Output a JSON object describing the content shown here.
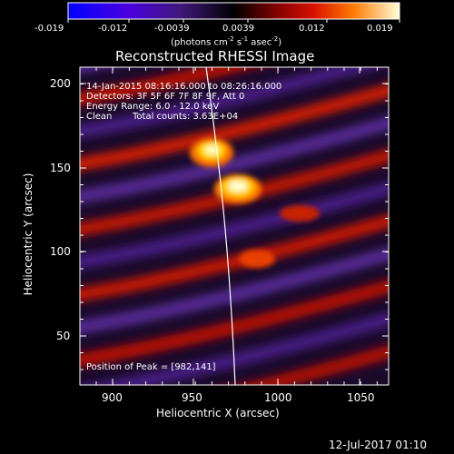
{
  "colorbar": {
    "ticks": [
      "-0.019",
      "-0.012",
      "-0.0039",
      "0.0039",
      "0.012",
      "0.019"
    ],
    "unit_label": "(photons cm",
    "unit_sup1": "-2",
    "unit_mid1": " s",
    "unit_sup2": "-1",
    "unit_mid2": " asec",
    "unit_sup3": "-2",
    "unit_end": ")"
  },
  "title": "Reconstructed RHESSI Image",
  "info": {
    "time_range": "14-Jan-2015 08:16:16.000 to 08:26:16.000",
    "detectors": "Detectors: 3F 5F 6F 7F 8F 9F, Att 0",
    "energy": "Energy Range: 6.0 - 12.0 keV",
    "algorithm": "Clean",
    "counts": "Total counts: 3.63E+04",
    "peak": "Position of Peak = [982,141]"
  },
  "axes": {
    "xlabel": "Heliocentric X (arcsec)",
    "ylabel": "Heliocentric Y (arcsec)",
    "xticks": [
      "900",
      "950",
      "1000",
      "1050"
    ],
    "yticks": [
      "50",
      "100",
      "150",
      "200"
    ]
  },
  "footer_date": "12-Jul-2017 01:10",
  "colors": {
    "background": "#000000",
    "text": "#ffffff",
    "colormap": [
      "#0000ff",
      "#6a00d8",
      "#3a1a6e",
      "#000000",
      "#5a0000",
      "#c80000",
      "#ff5a00",
      "#ffc000",
      "#ffffc0"
    ]
  }
}
